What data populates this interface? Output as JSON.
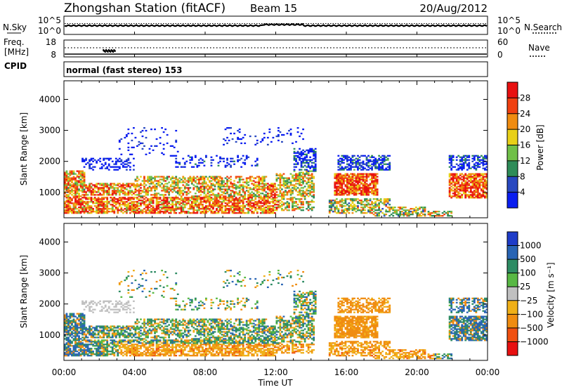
{
  "header": {
    "title": "Zhongshan Station (fitACF)",
    "beam": "Beam 15",
    "date": "20/Aug/2012"
  },
  "noise_panel": {
    "left_label": "N.Sky",
    "right_label": "N.Search",
    "ticks_left": [
      "10^5",
      "10^0"
    ],
    "ticks_right": [
      "10^5",
      "10^0"
    ]
  },
  "freq_panel": {
    "left_label_1": "Freq.",
    "left_label_2": "[MHz]",
    "right_label": "Nave",
    "ticks_left": [
      "18",
      "8"
    ],
    "ticks_right": [
      "60",
      "0"
    ]
  },
  "cpid": {
    "label": "CPID",
    "value": "normal (fast stereo) 153"
  },
  "chart_data": [
    {
      "type": "heatmap",
      "name": "Power",
      "ylabel": "Slant Range [km]",
      "ylim": [
        180,
        4600
      ],
      "yticks": [
        "1000",
        "2000",
        "3000",
        "4000"
      ],
      "yticks_values": [
        1000,
        2000,
        3000,
        4000
      ],
      "colorbar_label": "Power [dB]",
      "colorbar_ticks": [
        "4",
        "8",
        "12",
        "16",
        "20",
        "24",
        "28"
      ],
      "colorbar_range": [
        0,
        32
      ],
      "colors": [
        "#0a1ef0",
        "#2848c0",
        "#2e8c58",
        "#70c048",
        "#e8d018",
        "#f08c10",
        "#f04010",
        "#e81010"
      ]
    },
    {
      "type": "heatmap",
      "name": "Velocity",
      "ylabel": "Slant Range [km]",
      "ylim": [
        180,
        4600
      ],
      "yticks": [
        "1000",
        "2000",
        "3000",
        "4000"
      ],
      "yticks_values": [
        1000,
        2000,
        3000,
        4000
      ],
      "colorbar_label": "Velocity [m s⁻¹]",
      "colorbar_ticks": [
        "1000",
        "500",
        "100",
        "25",
        "−25",
        "−100",
        "−500",
        "−1000"
      ],
      "colors": [
        "#1e3cc8",
        "#2864b4",
        "#2e8c64",
        "#58b844",
        "#c0c0c0",
        "#f0b018",
        "#f08c10",
        "#f05010",
        "#e81010"
      ]
    }
  ],
  "x_axis": {
    "label": "Time UT",
    "ticks": [
      "00:00",
      "04:00",
      "08:00",
      "12:00",
      "16:00",
      "20:00",
      "00:00"
    ],
    "range_hours": [
      0,
      24
    ]
  }
}
